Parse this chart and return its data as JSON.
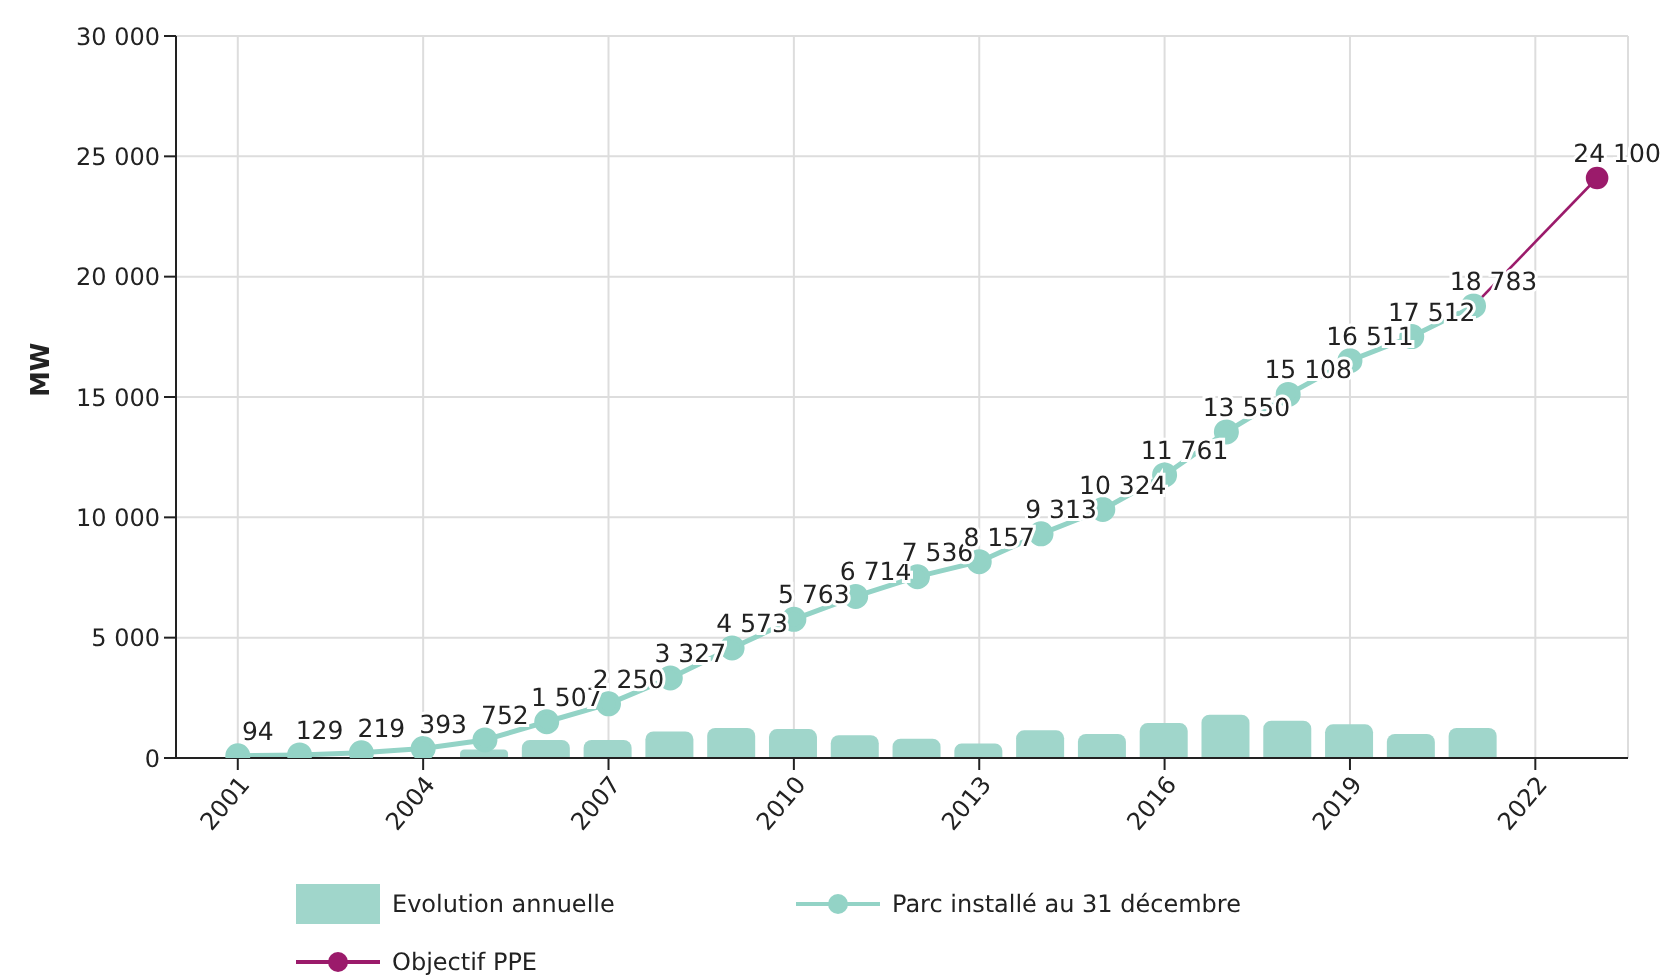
{
  "chart_data": {
    "type": "line",
    "ylabel": "MW",
    "xlim": [
      2000,
      2023.5
    ],
    "xticks": [
      2001,
      2004,
      2007,
      2010,
      2013,
      2016,
      2019,
      2022
    ],
    "ylim": [
      0,
      30000
    ],
    "yticks": [
      {
        "value": 0,
        "label": "0"
      },
      {
        "value": 5000,
        "label": "5 000"
      },
      {
        "value": 10000,
        "label": "10 000"
      },
      {
        "value": 15000,
        "label": "15 000"
      },
      {
        "value": 20000,
        "label": "20 000"
      },
      {
        "value": 25000,
        "label": "25 000"
      },
      {
        "value": 30000,
        "label": "30 000"
      }
    ],
    "grid": true,
    "legend": "bottom",
    "marker": "circle",
    "series": [
      {
        "name": "Evolution annuelle",
        "type": "bar",
        "color": "#a0d6cb",
        "x": [
          2005,
          2006,
          2007,
          2008,
          2009,
          2010,
          2011,
          2012,
          2013,
          2014,
          2015,
          2016,
          2017,
          2018,
          2019,
          2020,
          2021
        ],
        "values": [
          350,
          750,
          750,
          1100,
          1250,
          1200,
          950,
          800,
          600,
          1150,
          1000,
          1450,
          1800,
          1550,
          1400,
          1000,
          1250
        ]
      },
      {
        "name": "Parc installé au 31 décembre",
        "color": "#93d3c6",
        "x": [
          2001,
          2002,
          2003,
          2004,
          2005,
          2006,
          2007,
          2008,
          2009,
          2010,
          2011,
          2012,
          2013,
          2014,
          2015,
          2016,
          2017,
          2018,
          2019,
          2020,
          2021
        ],
        "values": [
          94,
          129,
          219,
          393,
          752,
          1507,
          2250,
          3327,
          4573,
          5763,
          6714,
          7536,
          8157,
          9313,
          10324,
          11761,
          13550,
          15108,
          16511,
          17512,
          18783
        ],
        "value_labels": [
          "94",
          "129",
          "219",
          "393",
          "752",
          "1 507",
          "2 250",
          "3 327",
          "4 573",
          "5 763",
          "6 714",
          "7 536",
          "8 157",
          "9 313",
          "10 324",
          "11 761",
          "13 550",
          "15 108",
          "16 511",
          "17 512",
          "18 783"
        ]
      },
      {
        "name": "Objectif PPE",
        "color": "#9b1b6b",
        "x": [
          2021,
          2023
        ],
        "values": [
          18783,
          24100
        ],
        "value_labels": [
          null,
          "24 100"
        ]
      }
    ]
  }
}
